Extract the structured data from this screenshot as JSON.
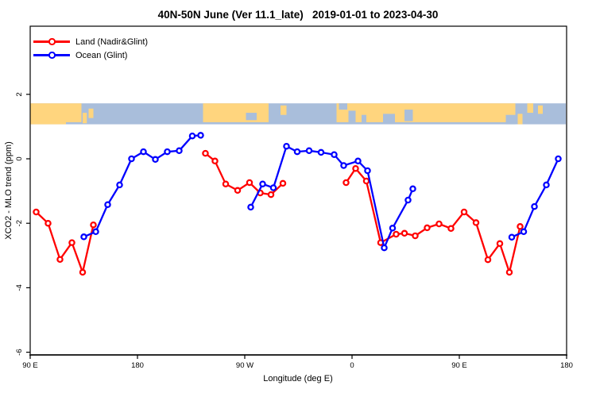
{
  "chart_data": {
    "type": "line",
    "title": "40N-50N June (Ver 11.1_late)   2019-01-01 to 2023-04-30",
    "xlabel": "Longitude (deg E)",
    "ylabel": "XCO2 - MLO trend (ppm)",
    "x_axis": {
      "note": "longitude axis starts at 90E and wraps eastward around the globe (450 deg span); data in 90E-180 range is plotted twice",
      "start_deg": 90,
      "end_deg": 540,
      "ticks": [
        {
          "pos": 90,
          "label": "90 E"
        },
        {
          "pos": 180,
          "label": "180"
        },
        {
          "pos": 270,
          "label": "90 W"
        },
        {
          "pos": 360,
          "label": "0"
        },
        {
          "pos": 450,
          "label": "90 E"
        },
        {
          "pos": 540,
          "label": "180"
        }
      ]
    },
    "y_axis": {
      "min": -6.1,
      "max": 4.1,
      "ticks": [
        2,
        0,
        -2,
        -4,
        -6
      ],
      "tick_labels": [
        "2",
        "0",
        "-2",
        "-4",
        "-6"
      ]
    },
    "grid": "off",
    "legend_position": "top-left inside plot",
    "legend": [
      {
        "label": "Land (Nadir&Glint)",
        "color": "#ff0000"
      },
      {
        "label": "Ocean (Glint)",
        "color": "#0000ff"
      }
    ],
    "series": [
      {
        "name": "Land (Nadir&Glint)",
        "color": "#ff0000",
        "marker": "open-circle",
        "segments": [
          [
            [
              95,
              -1.65
            ],
            [
              105,
              -2.0
            ],
            [
              115,
              -3.12
            ],
            [
              125,
              -2.6
            ],
            [
              134,
              -3.52
            ],
            [
              143,
              -2.05
            ]
          ],
          [
            [
              237,
              0.17
            ],
            [
              245,
              -0.07
            ],
            [
              254,
              -0.78
            ],
            [
              264,
              -0.98
            ],
            [
              274,
              -0.74
            ],
            [
              283,
              -1.06
            ],
            [
              292,
              -1.11
            ],
            [
              302,
              -0.76
            ]
          ],
          [
            [
              355,
              -0.74
            ],
            [
              363,
              -0.3
            ],
            [
              372,
              -0.69
            ],
            [
              384,
              -2.6
            ],
            [
              397,
              -2.34
            ],
            [
              404,
              -2.31
            ],
            [
              413,
              -2.39
            ],
            [
              423,
              -2.14
            ],
            [
              433,
              -2.02
            ],
            [
              443,
              -2.16
            ],
            [
              454,
              -1.65
            ],
            [
              464,
              -1.98
            ],
            [
              474,
              -3.13
            ],
            [
              484,
              -2.63
            ],
            [
              492,
              -3.52
            ],
            [
              501,
              -2.1
            ]
          ]
        ]
      },
      {
        "name": "Ocean (Glint)",
        "color": "#0000ff",
        "marker": "open-circle",
        "segments": [
          [
            [
              135,
              -2.42
            ],
            [
              145,
              -2.26
            ],
            [
              155,
              -1.42
            ],
            [
              165,
              -0.81
            ],
            [
              175,
              0.0
            ],
            [
              185,
              0.22
            ],
            [
              195,
              -0.02
            ],
            [
              205,
              0.22
            ],
            [
              215,
              0.25
            ],
            [
              226,
              0.71
            ],
            [
              233,
              0.73
            ]
          ],
          [
            [
              275,
              -1.5
            ],
            [
              285,
              -0.78
            ],
            [
              294,
              -0.9
            ],
            [
              305,
              0.39
            ],
            [
              314,
              0.22
            ],
            [
              324,
              0.25
            ],
            [
              334,
              0.2
            ],
            [
              345,
              0.13
            ],
            [
              353,
              -0.21
            ],
            [
              365,
              -0.07
            ],
            [
              373,
              -0.37
            ],
            [
              387,
              -2.76
            ],
            [
              394,
              -2.15
            ],
            [
              407,
              -1.28
            ],
            [
              411,
              -0.93
            ]
          ],
          [
            [
              494,
              -2.43
            ],
            [
              504,
              -2.26
            ],
            [
              513,
              -1.48
            ],
            [
              523,
              -0.81
            ],
            [
              533,
              0.0
            ]
          ]
        ]
      }
    ],
    "map_band": {
      "description": "40N-50N world-map strip drawn across the plot",
      "y_top_value": 1.72,
      "y_bottom_value": 1.07,
      "ocean_color": "#a9bedb",
      "land_color": "#ffd57e",
      "land_segments": [
        {
          "from": 90,
          "to": 120,
          "t": 0,
          "b": 1
        },
        {
          "from": 120,
          "to": 133,
          "t": 0,
          "b": 0.9
        },
        {
          "from": 134,
          "to": 137.5,
          "t": 0.45,
          "b": 0.95
        },
        {
          "from": 139,
          "to": 143,
          "t": 0.25,
          "b": 0.7
        },
        {
          "from": 235,
          "to": 290,
          "t": 0,
          "b": 0.9
        },
        {
          "from": 300,
          "to": 305,
          "t": 0.1,
          "b": 0.55
        },
        {
          "from": 347,
          "to": 497,
          "t": 0,
          "b": 0.9
        },
        {
          "from": 499,
          "to": 503,
          "t": 0.5,
          "b": 1
        },
        {
          "from": 507,
          "to": 512,
          "t": 0,
          "b": 0.45
        },
        {
          "from": 516,
          "to": 520,
          "t": 0.1,
          "b": 0.5
        }
      ],
      "ocean_patches": [
        {
          "from": 271,
          "to": 280,
          "t": 0.45,
          "b": 0.8
        },
        {
          "from": 349,
          "to": 356,
          "t": 0,
          "b": 0.3
        },
        {
          "from": 357,
          "to": 363,
          "t": 0.35,
          "b": 0.9
        },
        {
          "from": 368,
          "to": 372,
          "t": 0.55,
          "b": 0.9
        },
        {
          "from": 386,
          "to": 396,
          "t": 0.5,
          "b": 0.95
        },
        {
          "from": 404,
          "to": 411,
          "t": 0.3,
          "b": 0.85
        },
        {
          "from": 489,
          "to": 497,
          "t": 0.55,
          "b": 1
        }
      ]
    }
  }
}
